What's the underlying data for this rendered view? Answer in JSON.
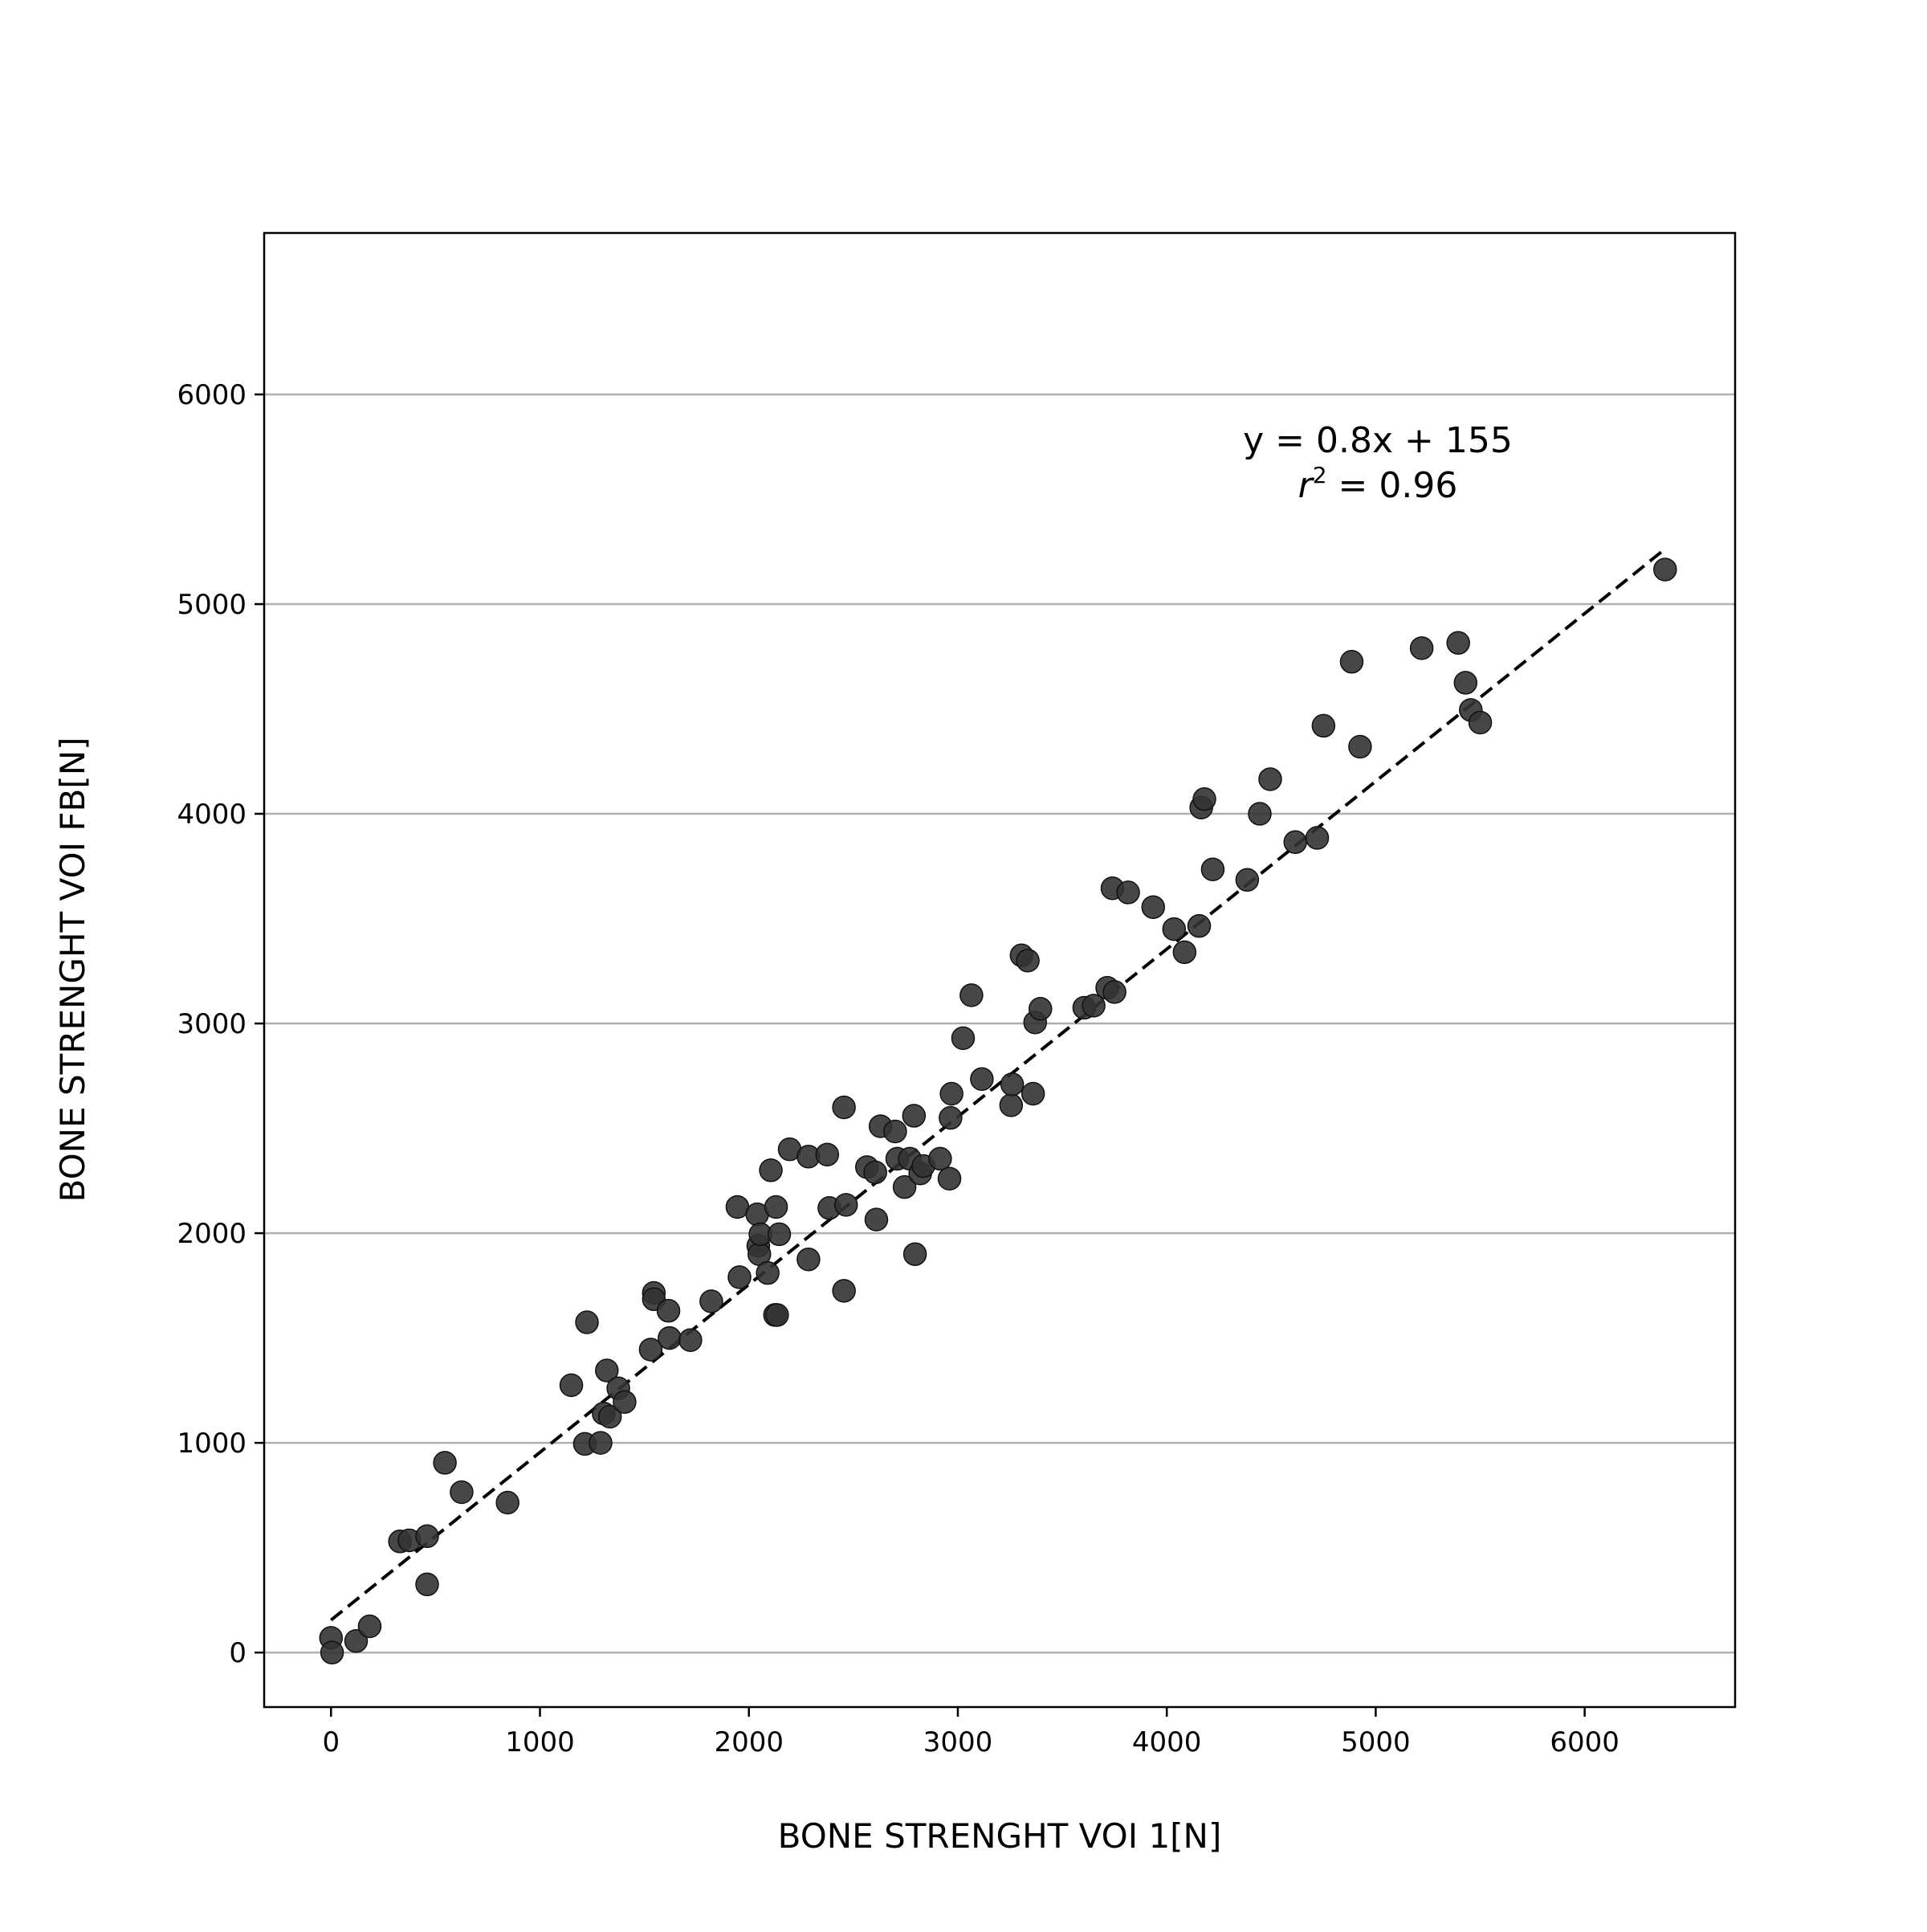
{
  "chart_data": {
    "type": "scatter",
    "title": "",
    "xlabel": "BONE STRENGHT VOI 1[N]",
    "ylabel": "BONE STRENGHT VOI FB[N]",
    "xlim": [
      -320,
      6720
    ],
    "ylim": [
      -260,
      6770
    ],
    "xticks": [
      0,
      1000,
      2000,
      3000,
      4000,
      5000,
      6000
    ],
    "yticks": [
      0,
      1000,
      2000,
      3000,
      4000,
      5000,
      6000
    ],
    "grid": "horizontal",
    "marker_color": "#333333",
    "fit": {
      "slope": 0.8,
      "intercept": 155,
      "x_range": [
        0,
        6370
      ],
      "equation_label": "y = 0.8x + 155",
      "r2_symbol": "r",
      "r2_power": "2",
      "r2_rest": " = 0.96"
    },
    "points": [
      [
        0,
        70
      ],
      [
        5,
        0
      ],
      [
        120,
        55
      ],
      [
        185,
        125
      ],
      [
        330,
        530
      ],
      [
        375,
        535
      ],
      [
        460,
        555
      ],
      [
        460,
        325
      ],
      [
        545,
        905
      ],
      [
        625,
        765
      ],
      [
        845,
        715
      ],
      [
        1150,
        1275
      ],
      [
        1215,
        995
      ],
      [
        1225,
        1575
      ],
      [
        1290,
        1000
      ],
      [
        1305,
        1140
      ],
      [
        1320,
        1345
      ],
      [
        1335,
        1125
      ],
      [
        1375,
        1260
      ],
      [
        1405,
        1195
      ],
      [
        1530,
        1445
      ],
      [
        1545,
        1715
      ],
      [
        1545,
        1685
      ],
      [
        1615,
        1630
      ],
      [
        1620,
        1500
      ],
      [
        1720,
        1490
      ],
      [
        1820,
        1675
      ],
      [
        1945,
        2125
      ],
      [
        1955,
        1790
      ],
      [
        2040,
        2090
      ],
      [
        2045,
        1940
      ],
      [
        2050,
        1900
      ],
      [
        2055,
        1995
      ],
      [
        2090,
        1810
      ],
      [
        2105,
        2300
      ],
      [
        2130,
        2125
      ],
      [
        2145,
        1995
      ],
      [
        2125,
        1610
      ],
      [
        2135,
        1610
      ],
      [
        2195,
        2400
      ],
      [
        2285,
        2365
      ],
      [
        2285,
        1875
      ],
      [
        2375,
        2375
      ],
      [
        2385,
        2120
      ],
      [
        2455,
        2600
      ],
      [
        2455,
        1725
      ],
      [
        2465,
        2135
      ],
      [
        2565,
        2315
      ],
      [
        2605,
        2290
      ],
      [
        2610,
        2065
      ],
      [
        2630,
        2510
      ],
      [
        2700,
        2485
      ],
      [
        2710,
        2355
      ],
      [
        2745,
        2220
      ],
      [
        2770,
        2355
      ],
      [
        2790,
        2560
      ],
      [
        2795,
        1900
      ],
      [
        2820,
        2285
      ],
      [
        2835,
        2320
      ],
      [
        2915,
        2355
      ],
      [
        2960,
        2260
      ],
      [
        2965,
        2550
      ],
      [
        2970,
        2665
      ],
      [
        3025,
        2930
      ],
      [
        3065,
        3135
      ],
      [
        3115,
        2735
      ],
      [
        3255,
        2610
      ],
      [
        3260,
        2710
      ],
      [
        3305,
        3325
      ],
      [
        3335,
        3300
      ],
      [
        3360,
        2665
      ],
      [
        3370,
        3005
      ],
      [
        3395,
        3070
      ],
      [
        3605,
        3075
      ],
      [
        3650,
        3085
      ],
      [
        3715,
        3170
      ],
      [
        3740,
        3645
      ],
      [
        3750,
        3150
      ],
      [
        3815,
        3625
      ],
      [
        3935,
        3555
      ],
      [
        4035,
        3450
      ],
      [
        4085,
        3340
      ],
      [
        4155,
        3465
      ],
      [
        4165,
        4030
      ],
      [
        4180,
        4070
      ],
      [
        4220,
        3735
      ],
      [
        4385,
        3685
      ],
      [
        4445,
        4000
      ],
      [
        4495,
        4165
      ],
      [
        4615,
        3865
      ],
      [
        4720,
        3885
      ],
      [
        4750,
        4420
      ],
      [
        4885,
        4725
      ],
      [
        4925,
        4320
      ],
      [
        5220,
        4790
      ],
      [
        5395,
        4815
      ],
      [
        5430,
        4625
      ],
      [
        5455,
        4495
      ],
      [
        5500,
        4435
      ],
      [
        6385,
        5165
      ]
    ]
  }
}
